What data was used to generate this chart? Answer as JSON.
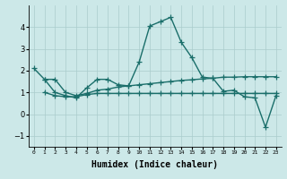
{
  "xlabel": "Humidex (Indice chaleur)",
  "xlim": [
    -0.5,
    23.5
  ],
  "ylim": [
    -1.5,
    5.0
  ],
  "yticks": [
    -1,
    0,
    1,
    2,
    3,
    4
  ],
  "xtick_labels": [
    "0",
    "1",
    "2",
    "3",
    "4",
    "5",
    "6",
    "7",
    "8",
    "9",
    "10",
    "11",
    "12",
    "13",
    "14",
    "15",
    "16",
    "17",
    "18",
    "19",
    "20",
    "21",
    "22",
    "23"
  ],
  "bg_color": "#cce8e8",
  "grid_color": "#aacccc",
  "line_color": "#1a6e6a",
  "line_width": 1.0,
  "marker": "+",
  "marker_size": 4,
  "marker_edge_width": 0.9,
  "series0_x": [
    0,
    1,
    2,
    3,
    4,
    5,
    6,
    7,
    8,
    9,
    10,
    11,
    12,
    13,
    14,
    15,
    16,
    17,
    18,
    19,
    20,
    21,
    22,
    23
  ],
  "series0_y": [
    2.1,
    1.6,
    1.0,
    0.85,
    0.75,
    1.2,
    1.6,
    1.6,
    1.35,
    1.3,
    2.4,
    4.05,
    4.25,
    4.45,
    3.3,
    2.6,
    1.7,
    1.65,
    1.05,
    1.1,
    0.8,
    0.75,
    -0.6,
    0.85
  ],
  "series1_x": [
    1,
    2,
    3,
    4,
    5,
    6,
    7,
    8,
    9,
    10,
    11,
    12,
    13,
    14,
    15,
    16,
    17,
    18,
    19,
    20,
    21,
    22,
    23
  ],
  "series1_y": [
    1.0,
    0.85,
    0.8,
    0.8,
    0.9,
    0.95,
    0.95,
    0.95,
    0.95,
    0.95,
    0.95,
    0.95,
    0.95,
    0.95,
    0.95,
    0.95,
    0.95,
    0.95,
    0.95,
    0.95,
    0.95,
    0.95,
    0.95
  ],
  "series2_x": [
    1,
    2,
    3,
    4,
    5,
    6,
    7,
    8,
    9,
    10,
    11,
    12,
    13,
    14,
    15,
    16,
    17,
    18,
    19,
    20,
    21,
    22,
    23
  ],
  "series2_y": [
    1.6,
    1.6,
    1.0,
    0.85,
    0.95,
    1.1,
    1.15,
    1.25,
    1.3,
    1.35,
    1.4,
    1.45,
    1.5,
    1.55,
    1.58,
    1.62,
    1.65,
    1.7,
    1.7,
    1.72,
    1.72,
    1.72,
    1.72
  ]
}
